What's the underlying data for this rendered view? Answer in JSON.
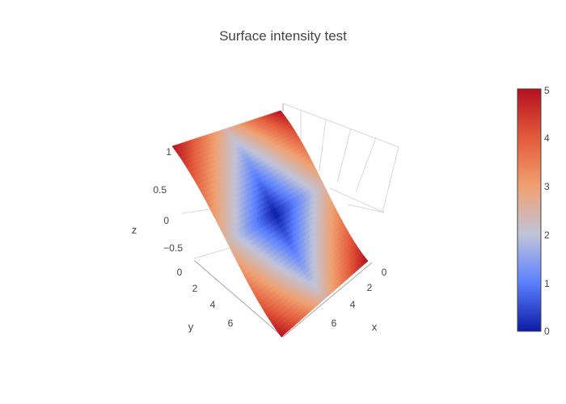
{
  "chart_data": {
    "type": "surface",
    "title": "Surface intensity test",
    "xlabel": "x",
    "ylabel": "y",
    "zlabel": "z",
    "x_ticks": [
      "0",
      "2",
      "4",
      "6"
    ],
    "y_ticks": [
      "0",
      "2",
      "4",
      "6"
    ],
    "z_ticks": [
      "1",
      "0.5",
      "0",
      "−0.5"
    ],
    "colorbar": {
      "min": 0,
      "max": 5,
      "ticks": [
        "0",
        "1",
        "2",
        "3",
        "4",
        "5"
      ],
      "colorscale": [
        "#0b1aa6",
        "#5b80ff",
        "#c0c4d9",
        "#f0a070",
        "#e35a3a",
        "#b5101f"
      ]
    },
    "surface": {
      "x_range": [
        0,
        8
      ],
      "y_range": [
        0,
        8
      ],
      "z_range": [
        -1,
        1
      ],
      "z_shape": "cos(pi*x/8)",
      "intensity_shape": "clamp(2.5*(|x-4|+|y-4|)/4, 0, 5)"
    }
  }
}
